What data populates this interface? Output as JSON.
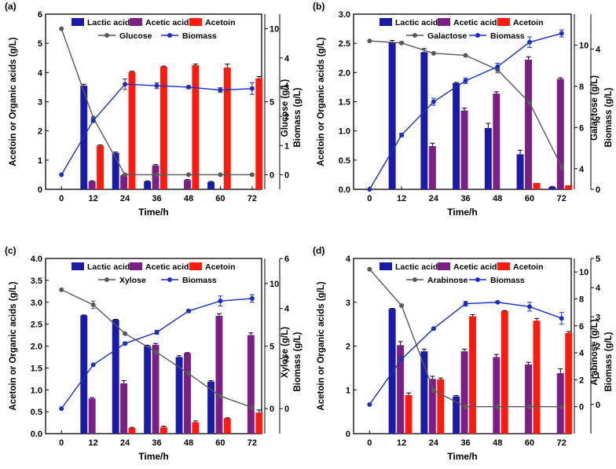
{
  "colors": {
    "lactic": "#1a1aa8",
    "acetic": "#7b1f86",
    "acetoin": "#ff1a0d",
    "sugar": "#595959",
    "biomass": "#1a2ec0"
  },
  "chart_data": [
    {
      "panel_label": "(a)",
      "type": "bar+line",
      "categories": [
        "0",
        "12",
        "24",
        "36",
        "48",
        "60",
        "72"
      ],
      "xlabel": "Time/h",
      "ylabel_left": "Acetoin or Organic acids (g/L)",
      "ylim_left": [
        0,
        6
      ],
      "yticks_left": [
        "0",
        "1",
        "2",
        "3",
        "4",
        "5",
        "6"
      ],
      "ylabel_sugar": "Glucose (g/L)",
      "ylim_sugar": [
        -1,
        11
      ],
      "yticks_sugar": [
        "0",
        "5",
        "10"
      ],
      "ylabel_biomass": "Biomass (g/L)",
      "ylim_biomass": [
        -0.5,
        5.5
      ],
      "yticks_biomass": [
        "0",
        "1",
        "2",
        "3",
        "4"
      ],
      "legend": [
        "Lactic acid",
        "Acetic acid",
        "Acetoin",
        "Glucose",
        "Biomass"
      ],
      "series": [
        {
          "name": "Lactic acid",
          "values": [
            null,
            3.55,
            1.25,
            0.27,
            null,
            0.25,
            null
          ],
          "errors": [
            0,
            0.05,
            0.03,
            0.02,
            0,
            0.02,
            0
          ]
        },
        {
          "name": "Acetic acid",
          "values": [
            null,
            0.27,
            0.48,
            0.82,
            0.32,
            null,
            null
          ],
          "errors": [
            0,
            0.02,
            0.02,
            0.03,
            0.02,
            0,
            0
          ]
        },
        {
          "name": "Acetoin",
          "values": [
            null,
            1.5,
            4.02,
            4.2,
            4.25,
            4.17,
            3.8
          ],
          "errors": [
            0,
            0.02,
            0.02,
            0.02,
            0.04,
            0.12,
            0.06
          ]
        }
      ],
      "sugar": {
        "name": "Glucose",
        "values": [
          10,
          3.9,
          0,
          0,
          0,
          0,
          0
        ],
        "errors": [
          0,
          0,
          0,
          0,
          0,
          0,
          0
        ]
      },
      "biomass": {
        "name": "Biomass",
        "values": [
          0,
          1.85,
          3.1,
          3.05,
          3.0,
          2.9,
          2.95
        ],
        "errors": [
          0,
          0.05,
          0.18,
          0.1,
          0.05,
          0.08,
          0.2
        ]
      }
    },
    {
      "panel_label": "(b)",
      "type": "bar+line",
      "categories": [
        "0",
        "12",
        "24",
        "36",
        "48",
        "60",
        "72"
      ],
      "xlabel": "Time/h",
      "ylabel_left": "Acetoin or Organic acids (g/L)",
      "ylim_left": [
        0,
        3
      ],
      "yticks_left": [
        "0.0",
        "0.5",
        "1.0",
        "1.5",
        "2.0",
        "2.5",
        "3.0"
      ],
      "ylabel_sugar": "Galactose (g/L)",
      "ylim_sugar": [
        3,
        11.5
      ],
      "yticks_sugar": [
        "4",
        "6",
        "8",
        "10"
      ],
      "ylabel_biomass": "Biomass (g/L)",
      "ylim_biomass": [
        0,
        5
      ],
      "yticks_biomass": [
        "0",
        "2",
        "4"
      ],
      "legend": [
        "Lactic acid",
        "Acetic acid",
        "Acetoin",
        "Galactose",
        "Biomass"
      ],
      "series": [
        {
          "name": "Lactic acid",
          "values": [
            null,
            2.52,
            2.35,
            1.82,
            1.05,
            0.6,
            0.04
          ],
          "errors": [
            0,
            0.03,
            0.06,
            0.01,
            0.08,
            0.07,
            0.01
          ]
        },
        {
          "name": "Acetic acid",
          "values": [
            null,
            null,
            0.74,
            1.35,
            1.64,
            2.22,
            1.89
          ],
          "errors": [
            0,
            0,
            0.05,
            0.04,
            0.03,
            0.05,
            0.02
          ]
        },
        {
          "name": "Acetoin",
          "values": [
            null,
            null,
            null,
            null,
            null,
            0.11,
            0.07
          ],
          "errors": [
            0,
            0,
            0,
            0,
            0,
            0,
            0
          ]
        }
      ],
      "sugar": {
        "name": "Galactose",
        "values": [
          10.2,
          10.1,
          9.6,
          9.5,
          8.8,
          7.2,
          4.1
        ],
        "errors": [
          0,
          0.05,
          0,
          0,
          0.15,
          0,
          0.15
        ]
      },
      "biomass": {
        "name": "Biomass",
        "values": [
          0,
          1.55,
          2.5,
          3.1,
          3.5,
          4.2,
          4.45
        ],
        "errors": [
          0,
          0.05,
          0.1,
          0.08,
          0.1,
          0.15,
          0.1
        ]
      }
    },
    {
      "panel_label": "(c)",
      "type": "bar+line",
      "categories": [
        "0",
        "12",
        "24",
        "36",
        "48",
        "60",
        "72"
      ],
      "xlabel": "Time/h",
      "ylabel_left": "Acetoin or Organic acids (g/L)",
      "ylim_left": [
        0,
        4
      ],
      "yticks_left": [
        "0.0",
        "0.5",
        "1.0",
        "1.5",
        "2.0",
        "2.5",
        "3.0",
        "3.5",
        "4.0"
      ],
      "ylabel_sugar": "Xylose (g/L)",
      "ylim_sugar": [
        -2,
        12
      ],
      "yticks_sugar": [
        "0",
        "5",
        "10"
      ],
      "ylabel_biomass": "Biomass (g/L)",
      "ylim_biomass": [
        -1,
        6
      ],
      "yticks_biomass": [
        "0",
        "2",
        "4",
        "6"
      ],
      "legend": [
        "Lactic acid",
        "Acetic acid",
        "Acetoin",
        "Xylose",
        "Biomass"
      ],
      "series": [
        {
          "name": "Lactic acid",
          "values": [
            null,
            2.7,
            2.6,
            2.0,
            1.75,
            1.19,
            null
          ],
          "errors": [
            0,
            0.01,
            0.01,
            0.02,
            0.03,
            0.02,
            0
          ]
        },
        {
          "name": "Acetic acid",
          "values": [
            null,
            0.8,
            1.15,
            2.03,
            1.84,
            2.69,
            2.25
          ],
          "errors": [
            0,
            0.02,
            0.06,
            0.03,
            0.01,
            0.05,
            0.05
          ]
        },
        {
          "name": "Acetoin",
          "values": [
            null,
            null,
            0.13,
            0.15,
            0.26,
            0.35,
            0.48
          ],
          "errors": [
            0,
            0,
            0.01,
            0.02,
            0.03,
            0.01,
            0.06
          ]
        }
      ],
      "sugar": {
        "name": "Xylose",
        "values": [
          9.5,
          8.3,
          6.0,
          4.5,
          2.8,
          1.0,
          0.1
        ],
        "errors": [
          0,
          0.3,
          0,
          0,
          0,
          0,
          0
        ]
      },
      "biomass": {
        "name": "Biomass",
        "values": [
          0,
          1.75,
          2.6,
          3.05,
          3.9,
          4.3,
          4.4
        ],
        "errors": [
          0,
          0,
          0.05,
          0.08,
          0.05,
          0.2,
          0.15
        ]
      }
    },
    {
      "panel_label": "(d)",
      "type": "bar+line",
      "categories": [
        "0",
        "12",
        "24",
        "36",
        "48",
        "60",
        "72"
      ],
      "xlabel": "Time/h",
      "ylabel_left": "Acetoin or Organic acids (g/L)",
      "ylim_left": [
        0,
        4
      ],
      "yticks_left": [
        "0",
        "1",
        "2",
        "3",
        "4"
      ],
      "ylabel_sugar": "Arabinose (g/L)",
      "ylim_sugar": [
        -2,
        11
      ],
      "yticks_sugar": [
        "0",
        "2",
        "4",
        "6",
        "8",
        "10"
      ],
      "ylabel_biomass": "Biomass (g/L)",
      "ylim_biomass": [
        -1,
        5
      ],
      "yticks_biomass": [
        "0",
        "1",
        "2",
        "3",
        "4",
        "5"
      ],
      "legend": [
        "Lactic acid",
        "Acetic acid",
        "Acetoin",
        "Arabinose",
        "Biomass"
      ],
      "series": [
        {
          "name": "Lactic acid",
          "values": [
            null,
            2.85,
            1.88,
            0.85,
            null,
            null,
            null
          ],
          "errors": [
            0,
            0.01,
            0.05,
            0.02,
            0,
            0,
            0
          ]
        },
        {
          "name": "Acetic acid",
          "values": [
            null,
            2.02,
            1.25,
            1.88,
            1.75,
            1.58,
            1.38
          ],
          "errors": [
            0,
            0.08,
            0.06,
            0.05,
            0.06,
            0.05,
            0.1
          ]
        },
        {
          "name": "Acetoin",
          "values": [
            null,
            0.88,
            1.24,
            2.68,
            2.8,
            2.58,
            2.3
          ],
          "errors": [
            0,
            0.05,
            0.03,
            0.04,
            0.01,
            0.05,
            0.03
          ]
        }
      ],
      "sugar": {
        "name": "Arabinose",
        "values": [
          10.2,
          7.5,
          1.2,
          0,
          0,
          0,
          0
        ],
        "errors": [
          0,
          0,
          0,
          0,
          0,
          0,
          0
        ]
      },
      "biomass": {
        "name": "Biomass",
        "values": [
          0,
          1.55,
          2.6,
          3.45,
          3.5,
          3.35,
          2.95
        ],
        "errors": [
          0,
          0.05,
          0.03,
          0.08,
          0.03,
          0.15,
          0.2
        ]
      }
    }
  ]
}
